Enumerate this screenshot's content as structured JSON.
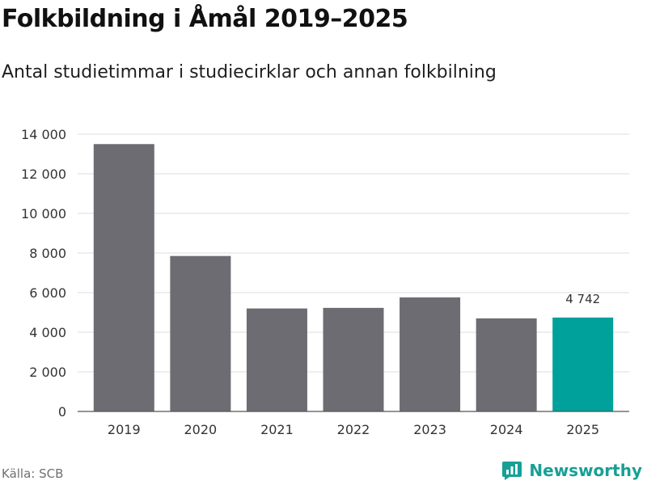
{
  "title": "Folkbildning i Åmål 2019–2025",
  "subtitle": "Antal studietimmar i studiecirklar och annan folkbilning",
  "source": "Källa: SCB",
  "brand": {
    "name": "Newsworthy",
    "icon": "newsworthy-logo-icon"
  },
  "colors": {
    "bar": "#6d6c72",
    "highlight": "#00a19a",
    "grid": "#dddddd",
    "axis": "#555555",
    "text": "#333333"
  },
  "chart_data": {
    "type": "bar",
    "title": "Folkbildning i Åmål 2019–2025",
    "xlabel": "",
    "ylabel": "",
    "categories": [
      "2019",
      "2020",
      "2021",
      "2022",
      "2023",
      "2024",
      "2025"
    ],
    "values": [
      13500,
      7850,
      5200,
      5230,
      5760,
      4700,
      4742
    ],
    "highlight_index": 6,
    "data_labels": [
      {
        "index": 6,
        "text": "4 742"
      }
    ],
    "ylim": [
      0,
      14000
    ],
    "yticks": [
      0,
      2000,
      4000,
      6000,
      8000,
      10000,
      12000,
      14000
    ],
    "ytick_labels": [
      "0",
      "2 000",
      "4 000",
      "6 000",
      "8 000",
      "10 000",
      "12 000",
      "14 000"
    ],
    "grid": true,
    "legend": "none"
  }
}
